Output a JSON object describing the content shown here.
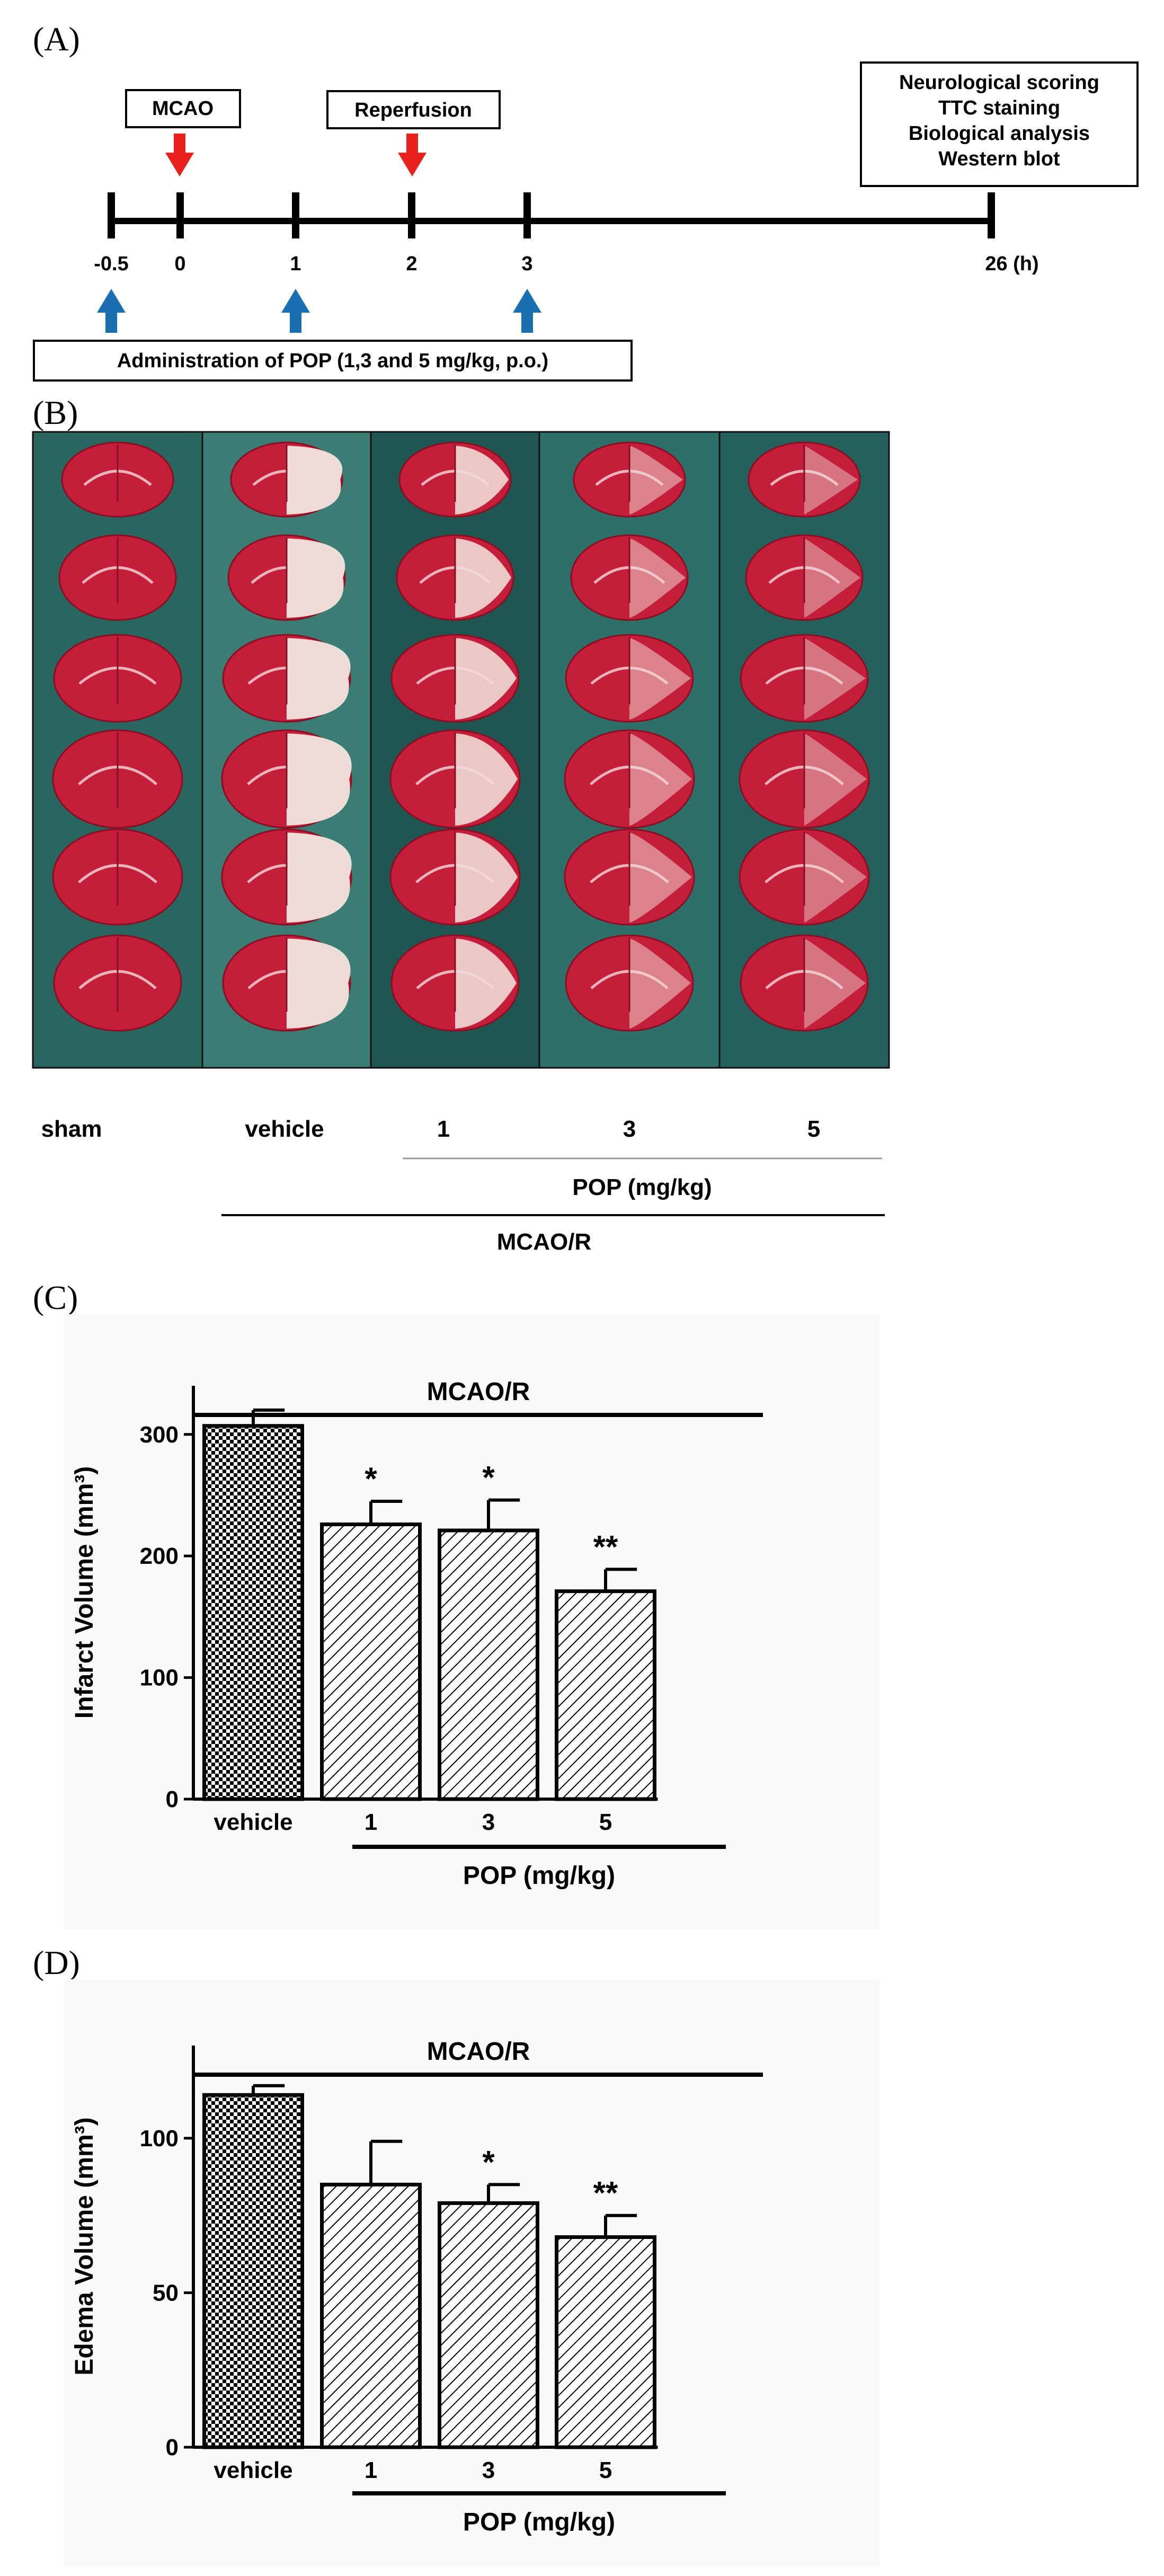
{
  "panelA": {
    "label": "(A)",
    "timeline": {
      "ticks": [
        "-0.5",
        "0",
        "1",
        "2",
        "3",
        "26 (h)"
      ],
      "mcao_label": "MCAO",
      "reperfusion_label": "Reperfusion",
      "endpoints": [
        "Neurological scoring",
        "TTC staining",
        "Biological analysis",
        "Western blot"
      ],
      "administration_label": "Administration of POP (1,3 and 5 mg/kg, p.o.)"
    }
  },
  "panelB": {
    "label": "(B)",
    "columns": [
      "sham",
      "vehicle",
      "1",
      "3",
      "5"
    ],
    "pop_label": "POP (mg/kg)",
    "mcao_label": "MCAO/R"
  },
  "chart_data": [
    {
      "panel": "(C)",
      "type": "bar",
      "title": "MCAO/R",
      "ylabel": "Infarct Volume (mm³)",
      "xlabel": "POP (mg/kg)",
      "categories": [
        "vehicle",
        "1",
        "3",
        "5"
      ],
      "values": [
        307,
        226,
        221,
        171
      ],
      "errors": [
        13,
        19,
        25,
        18
      ],
      "significance": [
        "",
        "*",
        "*",
        "**"
      ],
      "ylim": [
        0,
        340
      ],
      "yticks": [
        0,
        100,
        200,
        300
      ]
    },
    {
      "panel": "(D)",
      "type": "bar",
      "title": "MCAO/R",
      "ylabel": "Edema Volume (mm³)",
      "xlabel": "POP (mg/kg)",
      "categories": [
        "vehicle",
        "1",
        "3",
        "5"
      ],
      "values": [
        114,
        85,
        79,
        68
      ],
      "errors": [
        3,
        14,
        6,
        7
      ],
      "significance": [
        "",
        "",
        "*",
        "**"
      ],
      "ylim": [
        0,
        130
      ],
      "yticks": [
        0,
        50,
        100
      ]
    }
  ],
  "colors": {
    "mcao_arrow": "#e8211c",
    "admin_arrow": "#1a6fb0",
    "tissue_red": "#c41e3a",
    "background_teal": "#245c57"
  }
}
